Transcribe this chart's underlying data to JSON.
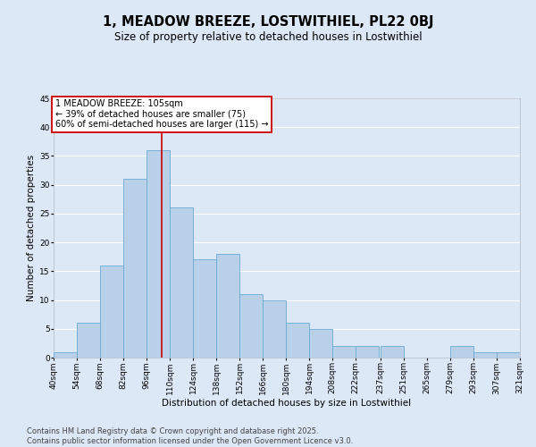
{
  "title": "1, MEADOW BREEZE, LOSTWITHIEL, PL22 0BJ",
  "subtitle": "Size of property relative to detached houses in Lostwithiel",
  "xlabel": "Distribution of detached houses by size in Lostwithiel",
  "ylabel": "Number of detached properties",
  "bins": [
    40,
    54,
    68,
    82,
    96,
    110,
    124,
    138,
    152,
    166,
    180,
    194,
    208,
    222,
    237,
    251,
    265,
    279,
    293,
    307,
    321
  ],
  "counts": [
    1,
    6,
    16,
    31,
    36,
    26,
    17,
    18,
    11,
    10,
    6,
    5,
    2,
    2,
    2,
    0,
    0,
    2,
    1,
    1
  ],
  "bar_color": "#b8d0e8",
  "bar_edge_color": "#6aaad4",
  "vline_x": 105,
  "vline_color": "#cc0000",
  "annotation_text": "1 MEADOW BREEZE: 105sqm\n← 39% of detached houses are smaller (75)\n60% of semi-detached houses are larger (115) →",
  "annotation_box_color": "white",
  "annotation_box_edge_color": "#cc0000",
  "ylim": [
    0,
    45
  ],
  "yticks": [
    0,
    5,
    10,
    15,
    20,
    25,
    30,
    35,
    40,
    45
  ],
  "tick_labels": [
    "40sqm",
    "54sqm",
    "68sqm",
    "82sqm",
    "96sqm",
    "110sqm",
    "124sqm",
    "138sqm",
    "152sqm",
    "166sqm",
    "180sqm",
    "194sqm",
    "208sqm",
    "222sqm",
    "237sqm",
    "251sqm",
    "265sqm",
    "279sqm",
    "293sqm",
    "307sqm",
    "321sqm"
  ],
  "footer": "Contains HM Land Registry data © Crown copyright and database right 2025.\nContains public sector information licensed under the Open Government Licence v3.0.",
  "bg_color": "#dce8f5",
  "grid_color": "#ffffff",
  "title_fontsize": 10.5,
  "subtitle_fontsize": 8.5,
  "axis_label_fontsize": 7.5,
  "tick_fontsize": 6.5,
  "footer_fontsize": 6.0,
  "annotation_fontsize": 7.0
}
